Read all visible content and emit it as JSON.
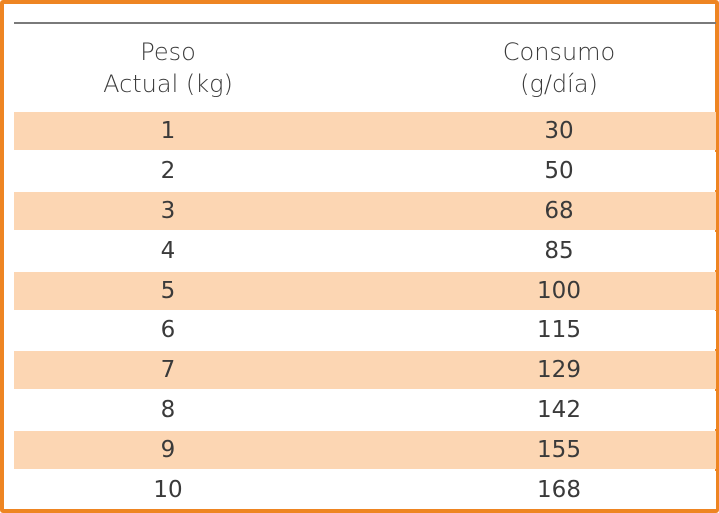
{
  "table": {
    "headers": {
      "weight_line1": "Peso",
      "weight_line2": "Actual (kg)",
      "consumption_line1": "Consumo",
      "consumption_line2": "(g/día)"
    },
    "rows": [
      {
        "weight": "1",
        "consumption": "30"
      },
      {
        "weight": "2",
        "consumption": "50"
      },
      {
        "weight": "3",
        "consumption": "68"
      },
      {
        "weight": "4",
        "consumption": "85"
      },
      {
        "weight": "5",
        "consumption": "100"
      },
      {
        "weight": "6",
        "consumption": "115"
      },
      {
        "weight": "7",
        "consumption": "129"
      },
      {
        "weight": "8",
        "consumption": "142"
      },
      {
        "weight": "9",
        "consumption": "155"
      },
      {
        "weight": "10",
        "consumption": "168"
      }
    ]
  },
  "colors": {
    "border": "#ee8522",
    "shaded_row": "#fcd6b3",
    "text": "#3a3a3a"
  }
}
